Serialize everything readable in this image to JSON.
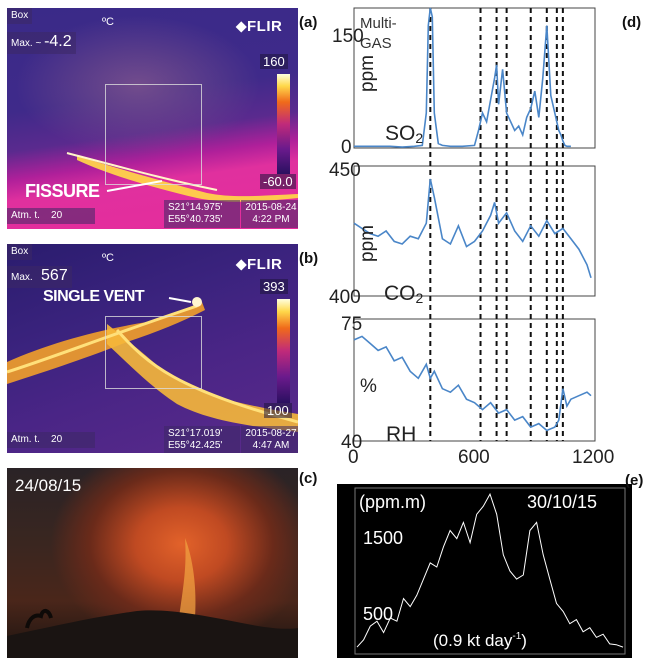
{
  "panel_a": {
    "letter": "(a)",
    "box_label": "Box",
    "unit": "ºC",
    "max_label": "Max. ~",
    "max_value": "-4.2",
    "brand": "FLIR",
    "scale_top": "160",
    "scale_bottom": "-60.0",
    "annotation": "FISSURE",
    "atm_label": "Atm. t.",
    "atm_value": "20",
    "coord_lat": "S21°14.975'",
    "coord_lon": "E55°40.735'",
    "date": "2015-08-24",
    "time": "4:22 PM"
  },
  "panel_b": {
    "letter": "(b)",
    "box_label": "Box",
    "unit": "ºC",
    "max_label": "Max.",
    "max_value": "567",
    "brand": "FLIR",
    "scale_top": "393",
    "scale_bottom": "100",
    "annotation": "SINGLE VENT",
    "atm_label": "Atm. t.",
    "atm_value": "20",
    "coord_lat": "S21°17.019'",
    "coord_lon": "E55°42.425'",
    "date": "2015-08-27",
    "time": "4:47 AM"
  },
  "panel_c": {
    "letter": "(c)",
    "date_label": "24/08/15"
  },
  "panel_d": {
    "letter": "(d)",
    "instrument_label_line1": "Multi-",
    "instrument_label_line2": "GAS",
    "x_ticks": [
      "0",
      "600",
      "1200"
    ],
    "xlim": [
      0,
      1200
    ]
  },
  "panel_e": {
    "letter": "(e)",
    "unit_label": "(ppm.m)",
    "date_label": "30/10/15",
    "tick_1500": "1500",
    "tick_500": "500",
    "flux_label_main": "(0.9 kt day",
    "flux_label_sup": "-1",
    "flux_label_end": ")"
  },
  "chart_data": [
    {
      "type": "line",
      "panel": "d-SO2",
      "ylabel": "ppm",
      "series_label": "SO2",
      "ylim": [
        0,
        160
      ],
      "y_ticks": [
        "150",
        "0"
      ],
      "vlines": [
        380,
        630,
        710,
        760,
        880,
        960,
        1010,
        1040
      ],
      "series": [
        {
          "name": "SO2",
          "x": [
            0,
            60,
            120,
            180,
            240,
            300,
            340,
            360,
            370,
            380,
            390,
            400,
            420,
            440,
            480,
            540,
            600,
            620,
            640,
            660,
            680,
            700,
            710,
            720,
            740,
            760,
            780,
            800,
            820,
            840,
            860,
            880,
            900,
            920,
            940,
            950,
            960,
            980,
            1000,
            1010,
            1020,
            1030,
            1040,
            1050,
            1060,
            1080
          ],
          "values": [
            2,
            2,
            2,
            2,
            1,
            2,
            3,
            40,
            140,
            160,
            150,
            40,
            5,
            3,
            2,
            2,
            3,
            20,
            40,
            30,
            55,
            80,
            95,
            50,
            90,
            40,
            30,
            20,
            25,
            15,
            35,
            45,
            65,
            35,
            80,
            110,
            140,
            60,
            40,
            30,
            20,
            15,
            8,
            3,
            2,
            2
          ]
        }
      ]
    },
    {
      "type": "line",
      "panel": "d-CO2",
      "ylabel": "ppm",
      "series_label": "CO2",
      "ylim": [
        400,
        450
      ],
      "y_ticks": [
        "450",
        "400"
      ],
      "vlines": [
        380,
        630,
        710,
        760,
        880,
        960,
        1010,
        1040
      ],
      "series": [
        {
          "name": "CO2",
          "x": [
            0,
            40,
            80,
            120,
            160,
            200,
            240,
            280,
            320,
            360,
            380,
            400,
            440,
            480,
            520,
            560,
            600,
            640,
            680,
            700,
            720,
            760,
            800,
            840,
            880,
            920,
            960,
            1000,
            1040,
            1080,
            1120,
            1160,
            1180
          ],
          "values": [
            428,
            426,
            424,
            423,
            425,
            421,
            420,
            423,
            422,
            428,
            445,
            438,
            422,
            420,
            427,
            419,
            421,
            425,
            431,
            436,
            428,
            432,
            425,
            421,
            427,
            423,
            429,
            424,
            426,
            422,
            418,
            412,
            407
          ]
        }
      ]
    },
    {
      "type": "line",
      "panel": "d-RH",
      "ylabel": "%",
      "series_label": "RH",
      "xlabel": "",
      "ylim": [
        40,
        75
      ],
      "y_ticks": [
        "75",
        "40"
      ],
      "x_ticks": [
        "0",
        "600",
        "1200"
      ],
      "xlim": [
        0,
        1200
      ],
      "vlines": [
        380,
        630,
        710,
        760,
        880,
        960,
        1010,
        1040
      ],
      "series": [
        {
          "name": "RH",
          "x": [
            0,
            40,
            80,
            120,
            160,
            200,
            240,
            280,
            320,
            360,
            380,
            400,
            440,
            480,
            520,
            560,
            600,
            640,
            680,
            720,
            760,
            800,
            840,
            880,
            920,
            960,
            1000,
            1020,
            1040,
            1060,
            1080,
            1120,
            1160,
            1180
          ],
          "values": [
            69,
            70,
            68,
            66,
            67,
            63,
            64,
            60,
            58,
            62,
            58,
            60,
            55,
            54,
            56,
            52,
            51,
            49,
            51,
            48,
            49,
            46,
            47,
            44,
            45,
            43,
            44,
            46,
            55,
            50,
            52,
            53,
            54,
            53
          ]
        }
      ]
    },
    {
      "type": "line",
      "panel": "e",
      "ylabel": "(ppm.m)",
      "title": "30/10/15",
      "ylim": [
        0,
        2000
      ],
      "y_ticks": [
        "1500",
        "500"
      ],
      "series": [
        {
          "name": "SO2 column",
          "x": [
            0,
            5,
            10,
            15,
            20,
            25,
            30,
            35,
            40,
            45,
            50,
            55,
            60,
            65,
            70,
            75,
            80,
            85,
            90,
            95,
            100,
            105,
            110,
            115,
            120,
            125,
            130,
            135,
            140,
            145,
            150,
            155,
            160,
            165,
            170,
            175,
            180,
            185,
            190,
            195,
            200
          ],
          "values": [
            60,
            150,
            320,
            380,
            240,
            420,
            380,
            660,
            560,
            700,
            900,
            1100,
            1050,
            1300,
            1500,
            1400,
            1600,
            1350,
            1700,
            1800,
            1950,
            1700,
            1200,
            1000,
            900,
            950,
            1500,
            1600,
            1200,
            900,
            600,
            500,
            350,
            400,
            250,
            300,
            180,
            220,
            100,
            90,
            60
          ]
        }
      ]
    }
  ]
}
